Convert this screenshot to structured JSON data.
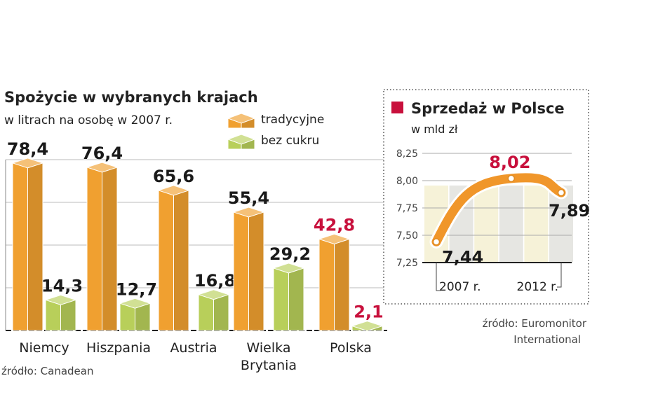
{
  "chart_data": [
    {
      "type": "bar",
      "title": "Spożycie w wybranych krajach",
      "subtitle": "w litrach na osobę w 2007 r.",
      "categories": [
        "Niemcy",
        "Hiszpania",
        "Austria",
        "Wielka Brytania",
        "Polska"
      ],
      "category_lines": [
        [
          "Niemcy"
        ],
        [
          "Hiszpania"
        ],
        [
          "Austria"
        ],
        [
          "Wielka",
          "Brytania"
        ],
        [
          "Polska"
        ]
      ],
      "series": [
        {
          "name": "tradycyjne",
          "values": [
            78.4,
            76.4,
            65.6,
            55.4,
            42.8
          ],
          "labels": [
            "78,4",
            "76,4",
            "65,6",
            "55,4",
            "42,8"
          ],
          "color": "#f0a030"
        },
        {
          "name": "bez cukru",
          "values": [
            14.3,
            12.7,
            16.8,
            29.2,
            2.1
          ],
          "labels": [
            "14,3",
            "12,7",
            "16,8",
            "29,2",
            "2,1"
          ],
          "color": "#b8cf5a"
        }
      ],
      "highlight_category": "Polska",
      "highlight_color": "#c8103c",
      "ylim": [
        0,
        80
      ],
      "grid": true,
      "legend": "top-right",
      "source": "źródło: Canadean"
    },
    {
      "type": "line",
      "title": "Sprzedaż w Polsce",
      "subtitle": "w mld zł",
      "x": [
        2007,
        2010,
        2012
      ],
      "y": [
        7.44,
        8.02,
        7.89
      ],
      "point_labels": [
        "7,44",
        "8,02",
        "7,89"
      ],
      "x_tick_labels": [
        "2007 r.",
        "2012 r."
      ],
      "y_ticks": [
        "7,25",
        "7,50",
        "7,75",
        "8,00",
        "8,25"
      ],
      "ylim": [
        7.25,
        8.25
      ],
      "grid": true,
      "line_color": "#f0962a",
      "title_marker_color": "#c8103c",
      "source_lines": [
        "źródło: Euromonitor",
        "International"
      ]
    }
  ]
}
